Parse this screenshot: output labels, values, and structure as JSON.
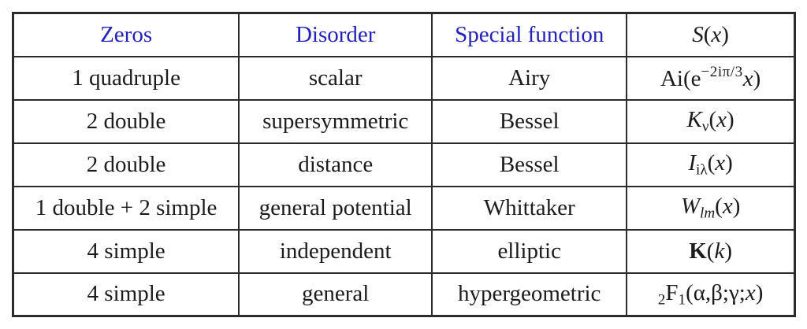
{
  "colors": {
    "header_blue": "#2222bb",
    "formula_red": "#c51f26",
    "text_black": "#1c1c1c",
    "border_color": "#2b2b2b",
    "page_bg": "#ffffff"
  },
  "table": {
    "headers": [
      "Zeros",
      "Disorder",
      "Special function"
    ],
    "header_formula": [
      {
        "t": "S",
        "s": "it"
      },
      {
        "t": "(",
        "s": "up"
      },
      {
        "t": "x",
        "s": "it"
      },
      {
        "t": ")",
        "s": "up"
      }
    ],
    "rows": [
      {
        "zeros": "1 quadruple",
        "disorder": "scalar",
        "special_function": "Airy",
        "formula": [
          {
            "t": "Ai(e",
            "s": "up"
          },
          {
            "t": "−2iπ/3",
            "s": "sup"
          },
          {
            "t": "x",
            "s": "it"
          },
          {
            "t": ")",
            "s": "up"
          }
        ]
      },
      {
        "zeros": "2 double",
        "disorder": "supersymmetric",
        "special_function": "Bessel",
        "formula": [
          {
            "t": "K",
            "s": "it"
          },
          {
            "t": "ν",
            "s": "sub"
          },
          {
            "t": "(",
            "s": "up"
          },
          {
            "t": "x",
            "s": "it"
          },
          {
            "t": ")",
            "s": "up"
          }
        ]
      },
      {
        "zeros": "2 double",
        "disorder": "distance",
        "special_function": "Bessel",
        "formula": [
          {
            "t": "I",
            "s": "it"
          },
          {
            "t": "iλ",
            "s": "sub"
          },
          {
            "t": "(",
            "s": "up"
          },
          {
            "t": "x",
            "s": "it"
          },
          {
            "t": ")",
            "s": "up"
          }
        ]
      },
      {
        "zeros": "1 double + 2 simple",
        "disorder": "general potential",
        "special_function": "Whittaker",
        "formula": [
          {
            "t": "W",
            "s": "it"
          },
          {
            "t": "lm",
            "s": "subit"
          },
          {
            "t": "(",
            "s": "up"
          },
          {
            "t": "x",
            "s": "it"
          },
          {
            "t": ")",
            "s": "up"
          }
        ]
      },
      {
        "zeros": "4 simple",
        "disorder": "independent",
        "special_function": "elliptic",
        "formula": [
          {
            "t": "K",
            "s": "bold"
          },
          {
            "t": "(",
            "s": "up"
          },
          {
            "t": "k",
            "s": "it"
          },
          {
            "t": ")",
            "s": "up"
          }
        ]
      },
      {
        "zeros": "4 simple",
        "disorder": "general",
        "special_function": "hypergeometric",
        "formula": [
          {
            "t": "2",
            "s": "sub"
          },
          {
            "t": "F",
            "s": "up"
          },
          {
            "t": "1",
            "s": "sub"
          },
          {
            "t": "(α,β;γ;",
            "s": "up"
          },
          {
            "t": "x",
            "s": "it"
          },
          {
            "t": ")",
            "s": "up"
          }
        ]
      }
    ]
  }
}
